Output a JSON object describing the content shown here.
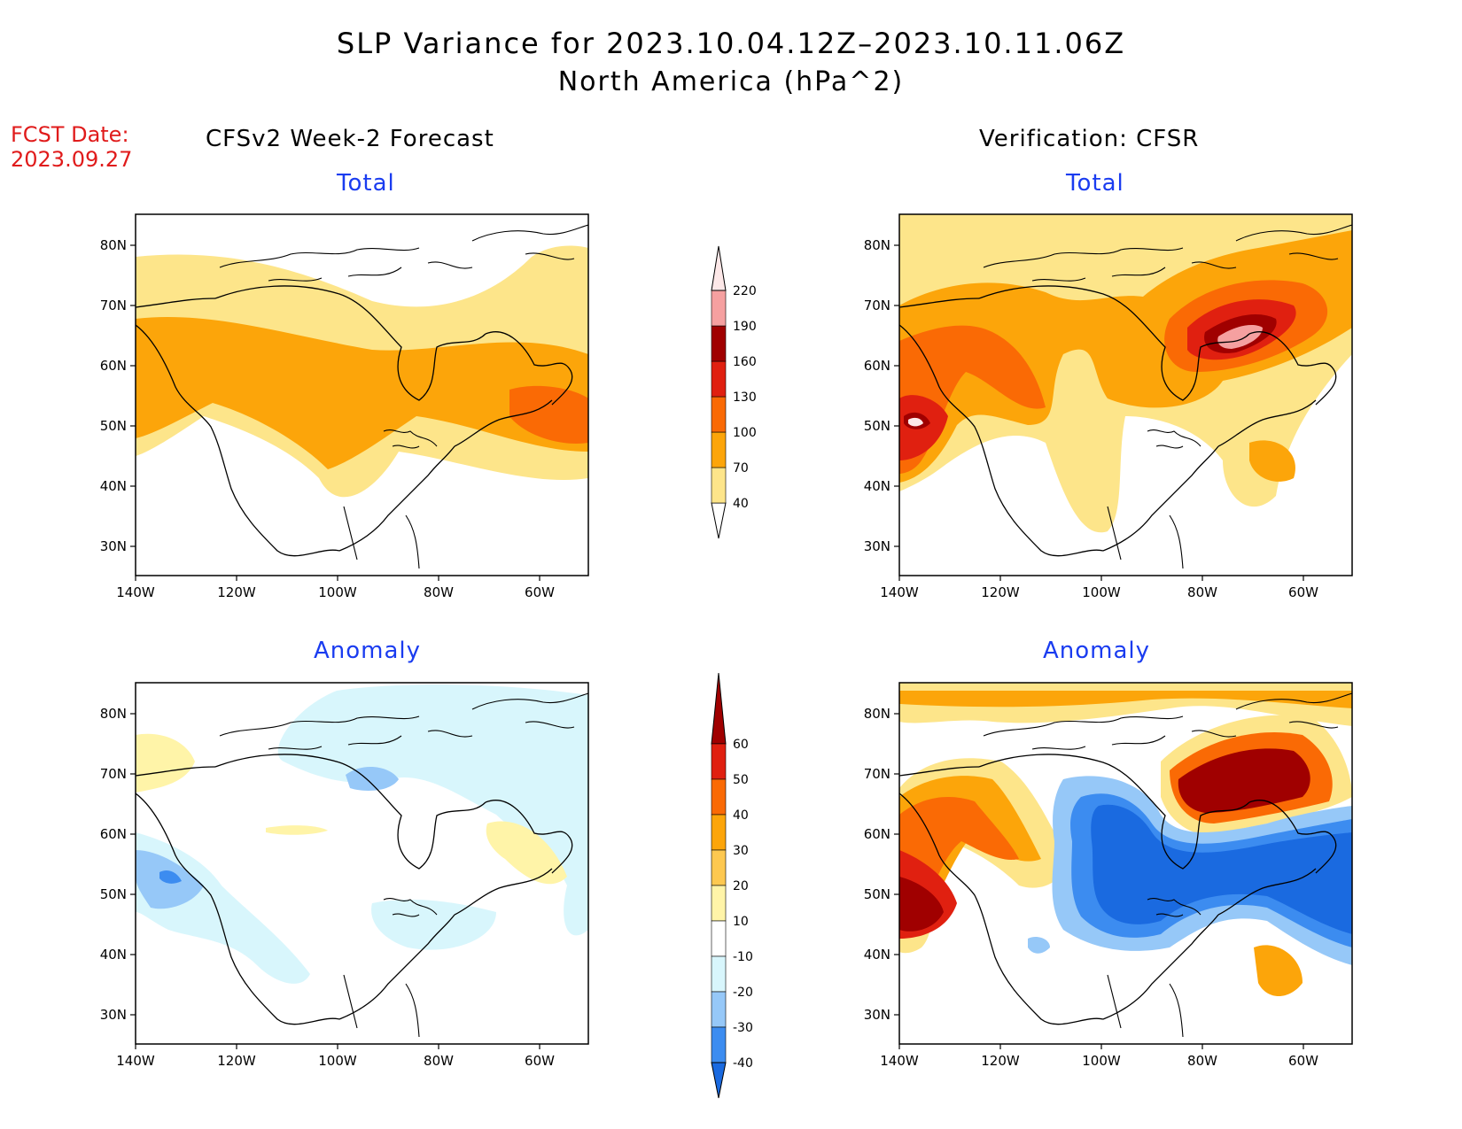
{
  "title": "SLP Variance for 2023.10.04.12Z–2023.10.11.06Z",
  "subtitle": "North America (hPa^2)",
  "fcst_date_label": "FCST Date:",
  "fcst_date_value": "2023.09.27",
  "columns": [
    {
      "title": "CFSv2 Week-2 Forecast"
    },
    {
      "title": "Verification: CFSR"
    }
  ],
  "panels": [
    {
      "title": "Total"
    },
    {
      "title": "Total"
    },
    {
      "title": "Anomaly"
    },
    {
      "title": "Anomaly"
    }
  ],
  "lat_ticks": [
    "80N",
    "70N",
    "60N",
    "50N",
    "40N",
    "30N"
  ],
  "lon_ticks": [
    "140W",
    "120W",
    "100W",
    "80W",
    "60W"
  ],
  "total_colorbar": {
    "labels": [
      "40",
      "70",
      "100",
      "130",
      "160",
      "190",
      "220"
    ],
    "colors": [
      "#fde58a",
      "#fca50a",
      "#fa6a05",
      "#e02010",
      "#a00000",
      "#f5a0a0",
      "#fde8e8"
    ]
  },
  "anomaly_colorbar": {
    "labels": [
      "-40",
      "-30",
      "-20",
      "-10",
      "10",
      "20",
      "30",
      "40",
      "50",
      "60"
    ],
    "colors": [
      "#1a6ae0",
      "#3c8cf0",
      "#96c8f8",
      "#d8f6fc",
      "#ffffff",
      "#fff4a8",
      "#fdc850",
      "#fca50a",
      "#fa6a05",
      "#e02010",
      "#a00000"
    ]
  },
  "colors": {
    "title_text": "#000000",
    "fcst_text": "#e01b1b",
    "panel_title_text": "#1a3cf0"
  }
}
